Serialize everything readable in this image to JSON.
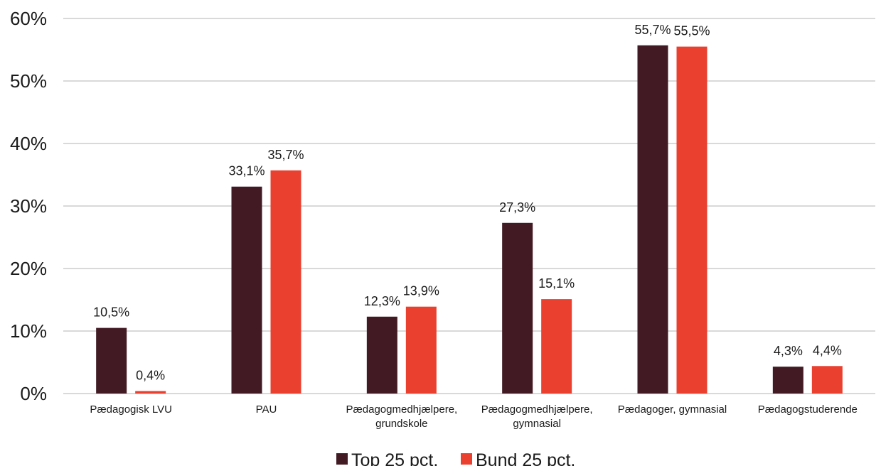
{
  "chart_data": {
    "type": "bar",
    "categories": [
      [
        "Pædagogisk LVU"
      ],
      [
        "PAU"
      ],
      [
        "Pædagogmedhjælpere,",
        "grundskole"
      ],
      [
        "Pædagogmedhjælpere,",
        "gymnasial"
      ],
      [
        "Pædagoger, gymnasial"
      ],
      [
        "Pædagogstuderende"
      ]
    ],
    "series": [
      {
        "name": "Top 25 pct.",
        "color": "#421a23",
        "values": [
          10.5,
          33.1,
          12.3,
          27.3,
          55.7,
          4.3
        ],
        "labels": [
          "10,5%",
          "33,1%",
          "12,3%",
          "27,3%",
          "55,7%",
          "4,3%"
        ]
      },
      {
        "name": "Bund 25 pct.",
        "color": "#e94030",
        "values": [
          0.4,
          35.7,
          13.9,
          15.1,
          55.5,
          4.4
        ],
        "labels": [
          "0,4%",
          "35,7%",
          "13,9%",
          "15,1%",
          "55,5%",
          "4,4%"
        ]
      }
    ],
    "yticks": [
      {
        "value": 0,
        "label": "0%"
      },
      {
        "value": 10,
        "label": "10%"
      },
      {
        "value": 20,
        "label": "20%"
      },
      {
        "value": 30,
        "label": "30%"
      },
      {
        "value": 40,
        "label": "40%"
      },
      {
        "value": 50,
        "label": "50%"
      },
      {
        "value": 60,
        "label": "60%"
      }
    ],
    "ylim": [
      0,
      60
    ],
    "grid": true,
    "legend": "bottom-center"
  }
}
